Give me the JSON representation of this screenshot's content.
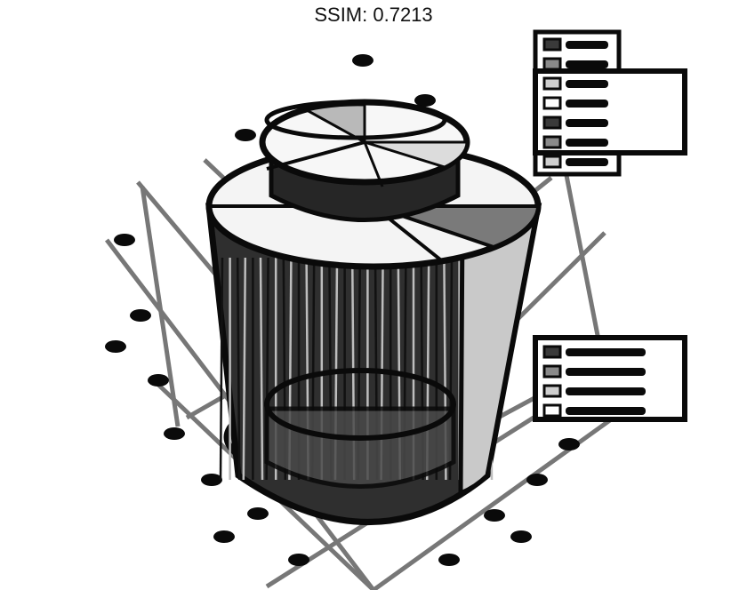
{
  "title": "SSIM: 0.7213",
  "colors": {
    "ink": "#0a0a0a",
    "shade_dark": "#3a3a3a",
    "shade_mid": "#8a8a8a",
    "shade_light": "#cfcfcf",
    "paper": "#ffffff",
    "grid": "#777777"
  },
  "chart_data": {
    "type": "pie",
    "view": "3d-cylinder-stack",
    "grid": true,
    "legend_positions": [
      "top-right",
      "middle-right"
    ],
    "rings": [
      {
        "name": "",
        "slices": [
          0.34,
          0.22,
          0.18,
          0.26
        ]
      },
      {
        "name": "",
        "slices": [
          0.3,
          0.25,
          0.2,
          0.25
        ]
      }
    ],
    "legend_top_entries": 7,
    "legend_top_inner_entries": 4,
    "legend_mid_entries": 4
  }
}
